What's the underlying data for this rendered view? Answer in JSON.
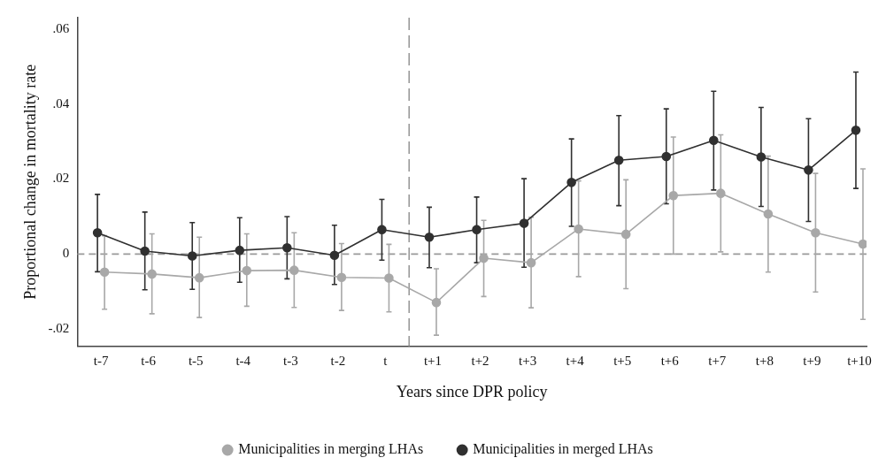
{
  "chart_data": {
    "type": "line",
    "xlabel": "Years since DPR policy",
    "ylabel": "Proportional change in mortality rate",
    "ylim": [
      -0.0245,
      0.063
    ],
    "categories": [
      "t-7",
      "t-6",
      "t-5",
      "t-4",
      "t-3",
      "t-2",
      "t",
      "t+1",
      "t+2",
      "t+3",
      "t+4",
      "t+5",
      "t+6",
      "t+7",
      "t+8",
      "t+9",
      "t+10"
    ],
    "yticks": [
      {
        "value": -0.02,
        "label": "-.02"
      },
      0,
      {
        "value": 0.02,
        "label": ".02"
      },
      {
        "value": 0.04,
        "label": ".04"
      },
      {
        "value": 0.06,
        "label": ".06"
      }
    ],
    "series": [
      {
        "name": "Municipalities in merging LHAs",
        "color": "#a8a8a8",
        "values": [
          -0.0048,
          -0.0053,
          -0.0063,
          -0.0044,
          -0.0043,
          -0.0062,
          -0.0064,
          -0.0129,
          -0.0011,
          -0.0023,
          0.0067,
          0.0053,
          0.0156,
          0.0162,
          0.0107,
          0.0057,
          0.0027
        ],
        "errors": [
          [
            -0.0147,
            0.0049
          ],
          [
            -0.0159,
            0.0054
          ],
          [
            -0.0169,
            0.0045
          ],
          [
            -0.0139,
            0.0054
          ],
          [
            -0.0142,
            0.0057
          ],
          [
            -0.015,
            0.0028
          ],
          [
            -0.0154,
            0.0026
          ],
          [
            -0.0216,
            -0.0039
          ],
          [
            -0.0113,
            0.009
          ],
          [
            -0.0143,
            0.0098
          ],
          [
            -0.006,
            0.0195
          ],
          [
            -0.0092,
            0.0198
          ],
          [
            0.0,
            0.0312
          ],
          [
            0.0006,
            0.0318
          ],
          [
            -0.0048,
            0.0261
          ],
          [
            -0.0101,
            0.0215
          ],
          [
            -0.0174,
            0.0227
          ]
        ]
      },
      {
        "name": "Municipalities in merged LHAs",
        "color": "#303030",
        "values": [
          0.0057,
          0.0008,
          -0.0005,
          0.001,
          0.0017,
          -0.0003,
          0.0065,
          0.0045,
          0.0065,
          0.0082,
          0.0191,
          0.025,
          0.026,
          0.0303,
          0.0259,
          0.0224,
          0.033
        ],
        "errors": [
          [
            -0.0047,
            0.0159
          ],
          [
            -0.0095,
            0.0112
          ],
          [
            -0.0094,
            0.0084
          ],
          [
            -0.0075,
            0.0097
          ],
          [
            -0.0066,
            0.01
          ],
          [
            -0.0081,
            0.0077
          ],
          [
            -0.0016,
            0.0146
          ],
          [
            -0.0036,
            0.0125
          ],
          [
            -0.0023,
            0.0152
          ],
          [
            -0.0035,
            0.0201
          ],
          [
            0.0074,
            0.0307
          ],
          [
            0.0129,
            0.0369
          ],
          [
            0.0134,
            0.0387
          ],
          [
            0.0171,
            0.0434
          ],
          [
            0.0127,
            0.0391
          ],
          [
            0.0087,
            0.0361
          ],
          [
            0.0175,
            0.0485
          ]
        ]
      }
    ],
    "ref_lines": [
      {
        "axis": "y",
        "value": 0,
        "color": "#999999",
        "line_style": "dashed"
      }
    ],
    "marker": "circle",
    "grid": false,
    "legend": "bottom"
  }
}
